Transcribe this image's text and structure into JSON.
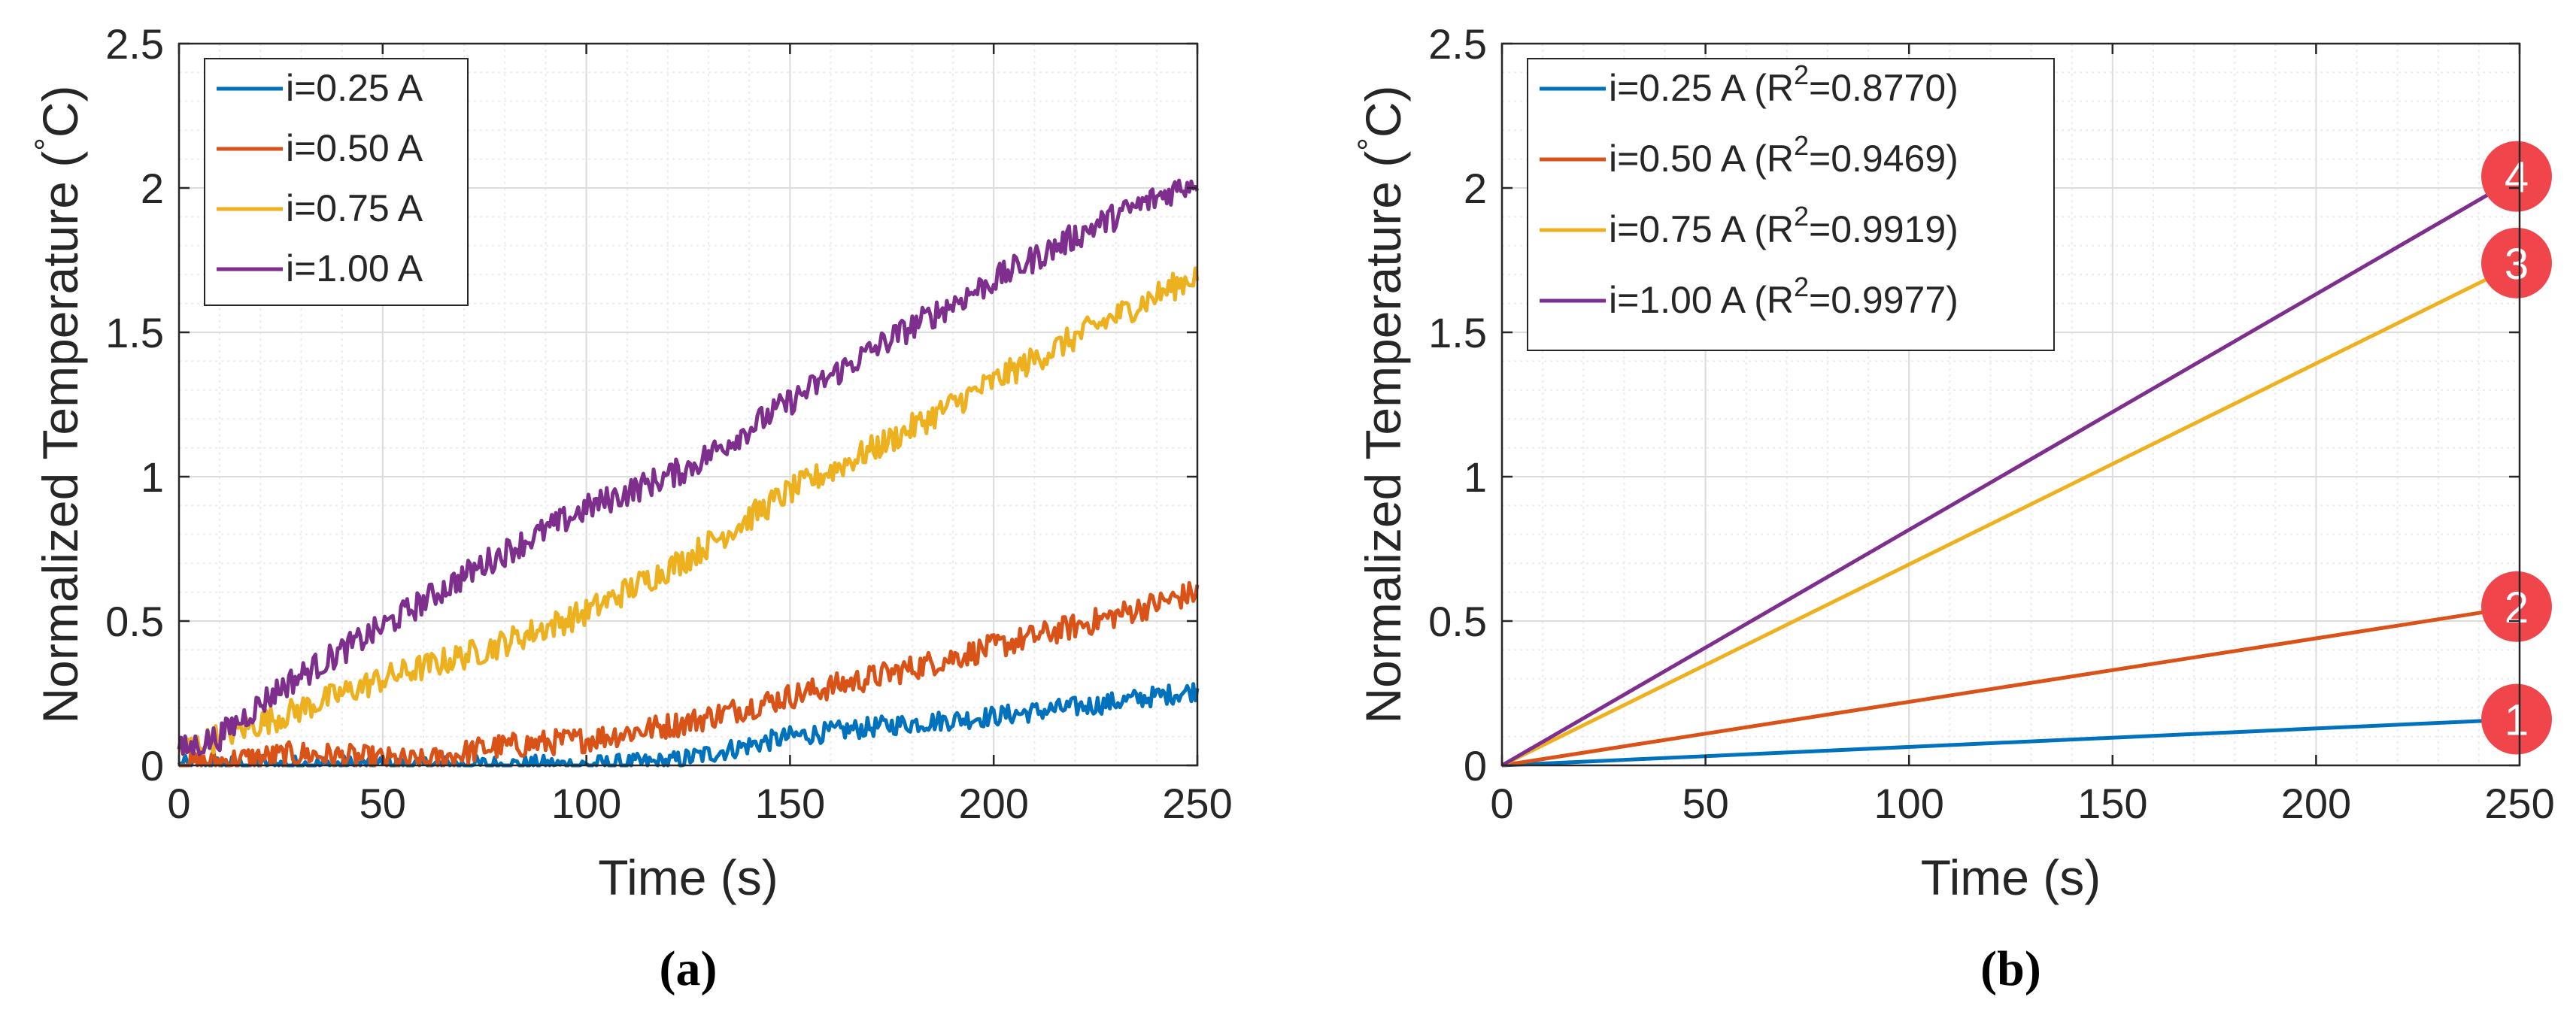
{
  "colors": {
    "blue": "#0072BD",
    "orange": "#D95319",
    "yellow": "#EDB120",
    "purple": "#7E2F8E",
    "badge": "#F0464B"
  },
  "chart_data": [
    {
      "type": "line",
      "panel_label": "(a)",
      "xlabel": "Time (s)",
      "ylabel_prefix": "Normalized Temperature (",
      "ylabel_unit_sup": "°",
      "ylabel_unit": "C)",
      "xlim": [
        0,
        250
      ],
      "ylim": [
        0,
        2.5
      ],
      "xticks": [
        0,
        50,
        100,
        150,
        200,
        250
      ],
      "xtick_labels": [
        "0",
        "50",
        "100",
        "150",
        "200",
        "250"
      ],
      "yticks": [
        0,
        0.5,
        1,
        1.5,
        2,
        2.5
      ],
      "ytick_labels": [
        "0",
        "0.5",
        "1",
        "1.5",
        "2",
        "2.5"
      ],
      "grid": true,
      "legend_position": "top-left",
      "series": [
        {
          "name": "i=0.25 A",
          "color_key": "blue",
          "x": [
            0,
            20,
            40,
            60,
            80,
            100,
            120,
            130,
            150,
            175,
            200,
            225,
            250
          ],
          "y": [
            0,
            0,
            0,
            0,
            0,
            0,
            0.01,
            0.04,
            0.1,
            0.14,
            0.17,
            0.21,
            0.26
          ],
          "noise": 0.022
        },
        {
          "name": "i=0.50 A",
          "color_key": "orange",
          "x": [
            0,
            15,
            30,
            50,
            60,
            75,
            100,
            125,
            150,
            175,
            200,
            225,
            250
          ],
          "y": [
            0,
            0.02,
            0.04,
            0.02,
            0.01,
            0.06,
            0.09,
            0.15,
            0.24,
            0.32,
            0.41,
            0.5,
            0.6
          ],
          "noise": 0.028
        },
        {
          "name": "i=0.75 A",
          "color_key": "yellow",
          "x": [
            0,
            10,
            25,
            50,
            75,
            100,
            125,
            150,
            175,
            200,
            225,
            250
          ],
          "y": [
            0.05,
            0.1,
            0.17,
            0.3,
            0.4,
            0.53,
            0.72,
            0.95,
            1.13,
            1.33,
            1.52,
            1.7
          ],
          "noise": 0.03
        },
        {
          "name": "i=1.00 A",
          "color_key": "purple",
          "x": [
            0,
            10,
            25,
            50,
            75,
            100,
            125,
            150,
            175,
            200,
            225,
            250
          ],
          "y": [
            0.05,
            0.1,
            0.27,
            0.48,
            0.7,
            0.89,
            1.03,
            1.26,
            1.48,
            1.68,
            1.87,
            2.03
          ],
          "noise": 0.03
        }
      ]
    },
    {
      "type": "line",
      "panel_label": "(b)",
      "xlabel": "Time (s)",
      "ylabel_prefix": "Normalized Temperature (",
      "ylabel_unit_sup": "°",
      "ylabel_unit": "C)",
      "xlim": [
        0,
        250
      ],
      "ylim": [
        0,
        2.5
      ],
      "xticks": [
        0,
        50,
        100,
        150,
        200,
        250
      ],
      "xtick_labels": [
        "0",
        "50",
        "100",
        "150",
        "200",
        "250"
      ],
      "yticks": [
        0,
        0.5,
        1,
        1.5,
        2,
        2.5
      ],
      "ytick_labels": [
        "0",
        "0.5",
        "1",
        "1.5",
        "2",
        "2.5"
      ],
      "grid": true,
      "legend_position": "top-left",
      "series": [
        {
          "name": "i=0.25 A (R",
          "sup": "2",
          "suffix": "=0.8770)",
          "color_key": "blue",
          "x": [
            0,
            250
          ],
          "y": [
            0,
            0.16
          ],
          "badge": "1"
        },
        {
          "name": "i=0.50 A (R",
          "sup": "2",
          "suffix": "=0.9469)",
          "color_key": "orange",
          "x": [
            0,
            250
          ],
          "y": [
            0,
            0.55
          ],
          "badge": "2"
        },
        {
          "name": "i=0.75 A (R",
          "sup": "2",
          "suffix": "=0.9919)",
          "color_key": "yellow",
          "x": [
            0,
            250
          ],
          "y": [
            0,
            1.74
          ],
          "badge": "3"
        },
        {
          "name": "i=1.00 A (R",
          "sup": "2",
          "suffix": "=0.9977)",
          "color_key": "purple",
          "x": [
            0,
            250
          ],
          "y": [
            0,
            2.04
          ],
          "badge": "4"
        }
      ]
    }
  ]
}
